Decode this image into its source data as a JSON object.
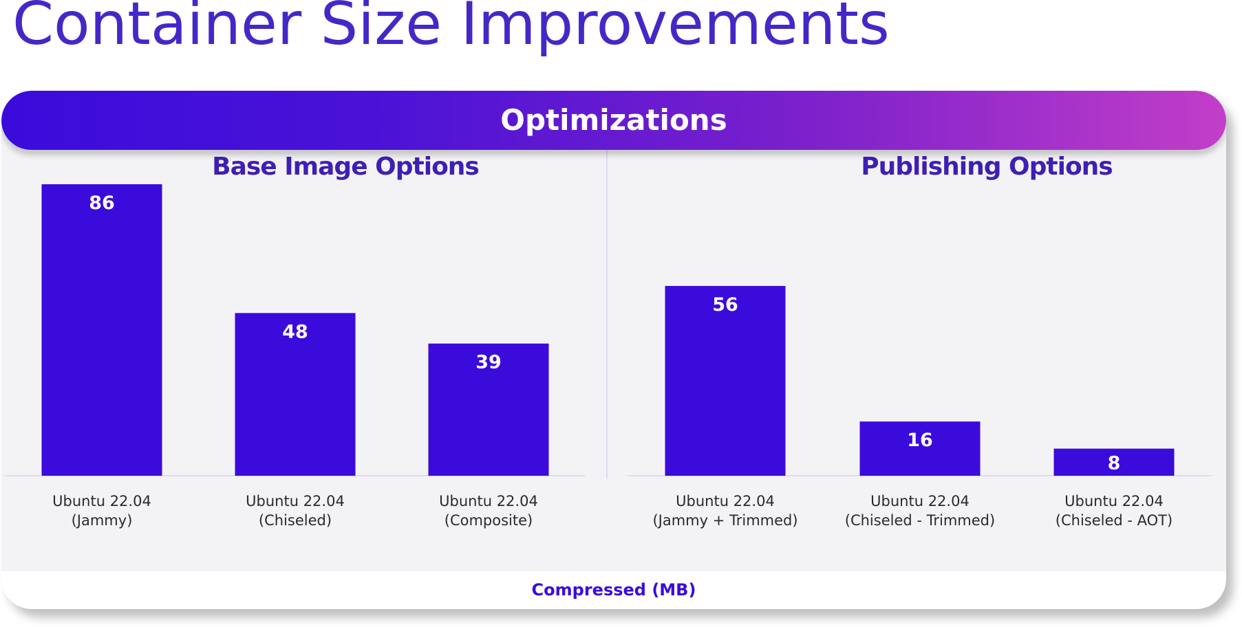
{
  "page": {
    "title": "Container Size Improvements"
  },
  "card": {
    "banner": "Optimizations",
    "footer": "Compressed (MB)"
  },
  "colors": {
    "title": "#4428c7",
    "bar": "#3b0bdc",
    "section_title": "#3f1fb3",
    "banner_start": "#3b0bdc",
    "banner_end": "#c23ec8",
    "panel_bg": "#f3f3f6",
    "axis_line": "#c9c3f2",
    "tick_text": "#2a2a2a"
  },
  "chart_data": [
    {
      "type": "bar",
      "title": "Base Image Options",
      "categories": [
        [
          "Ubuntu 22.04",
          "(Jammy)"
        ],
        [
          "Ubuntu 22.04",
          "(Chiseled)"
        ],
        [
          "Ubuntu 22.04",
          "(Composite)"
        ]
      ],
      "values": [
        86,
        48,
        39
      ],
      "ylabel": "Compressed (MB)",
      "ylim": [
        0,
        86
      ],
      "grid": false
    },
    {
      "type": "bar",
      "title": "Publishing Options",
      "categories": [
        [
          "Ubuntu 22.04",
          "(Jammy + Trimmed)"
        ],
        [
          "Ubuntu 22.04",
          "(Chiseled - Trimmed)"
        ],
        [
          "Ubuntu 22.04",
          "(Chiseled - AOT)"
        ]
      ],
      "values": [
        56,
        16,
        8
      ],
      "ylabel": "Compressed (MB)",
      "ylim": [
        0,
        86
      ],
      "grid": false
    }
  ]
}
